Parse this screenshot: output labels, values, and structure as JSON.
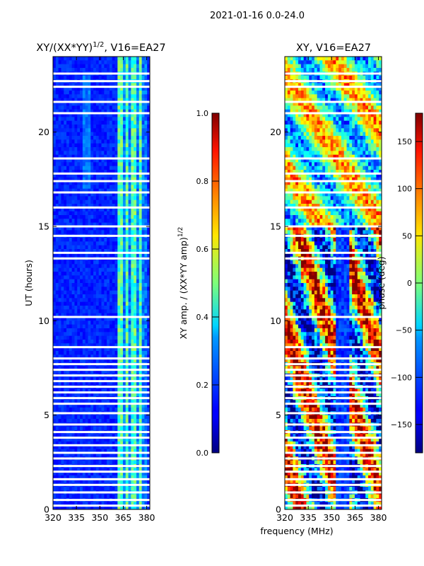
{
  "figure": {
    "suptitle": "2021-01-16 0.0-24.0",
    "xlabel": "frequency (MHz)"
  },
  "left_panel": {
    "title_main": "XY/(XX*YY)",
    "title_sup": "1/2",
    "title_rest": ", V16=EA27",
    "ylabel": "UT (hours)"
  },
  "left_colorbar": {
    "label_main": "XY amp. / (XX*YY amp)",
    "label_sup": "1/2",
    "ticks": [
      "0.0",
      "0.2",
      "0.4",
      "0.6",
      "0.8",
      "1.0"
    ]
  },
  "right_panel": {
    "title": "XY, V16=EA27"
  },
  "right_colorbar": {
    "label": "phase (deg)",
    "ticks": [
      "−150",
      "−100",
      "−50",
      "0",
      "50",
      "100",
      "150"
    ]
  },
  "chart_data": [
    {
      "type": "heatmap",
      "title": "XY/(XX*YY)^1/2, V16=EA27",
      "xlabel": "frequency (MHz)",
      "ylabel": "UT (hours)",
      "xlim": [
        320,
        382
      ],
      "ylim": [
        0,
        24
      ],
      "xticks": [
        320,
        335,
        350,
        365,
        380
      ],
      "yticks": [
        0,
        5,
        10,
        15,
        20
      ],
      "colorbar": {
        "label": "XY amp. / (XX*YY amp)^1/2",
        "range": [
          0.0,
          1.0
        ],
        "colormap": "jet"
      },
      "background_level": 0.12,
      "high_band_mhz": [
        362,
        381
      ],
      "high_band_level": [
        0.35,
        0.55
      ],
      "flagged_hours": [
        0.2,
        0.5,
        0.9,
        1.3,
        1.6,
        2.0,
        2.3,
        2.7,
        3.0,
        3.4,
        3.8,
        4.1,
        4.5,
        5.1,
        5.6,
        5.9,
        6.2,
        6.5,
        6.8,
        7.1,
        7.4,
        7.7,
        8.0,
        8.6,
        10.2,
        13.3,
        13.6,
        14.5,
        15.0,
        16.0,
        16.8,
        17.4,
        17.8,
        18.6,
        21.0,
        21.6,
        22.4,
        22.7,
        23.1
      ]
    },
    {
      "type": "heatmap",
      "title": "XY, V16=EA27",
      "xlabel": "frequency (MHz)",
      "ylabel": "UT (hours)",
      "xlim": [
        320,
        382
      ],
      "ylim": [
        0,
        24
      ],
      "xticks": [
        320,
        335,
        350,
        365,
        380
      ],
      "yticks": [
        0,
        5,
        10,
        15,
        20
      ],
      "colorbar": {
        "label": "phase (deg)",
        "range": [
          -180,
          180
        ],
        "ticks": [
          -150,
          -100,
          -50,
          0,
          50,
          100,
          150
        ],
        "colormap": "jet"
      },
      "flagged_hours": [
        0.2,
        0.5,
        0.9,
        1.3,
        1.6,
        2.0,
        2.3,
        2.7,
        3.0,
        3.4,
        3.8,
        4.1,
        4.5,
        5.1,
        5.6,
        5.9,
        6.2,
        6.5,
        6.8,
        7.1,
        7.4,
        7.7,
        8.0,
        8.6,
        10.2,
        13.3,
        13.6,
        14.5,
        15.0,
        16.0,
        16.8,
        17.4,
        17.8,
        18.6,
        21.0,
        21.6,
        22.4,
        22.7,
        23.1
      ]
    }
  ]
}
